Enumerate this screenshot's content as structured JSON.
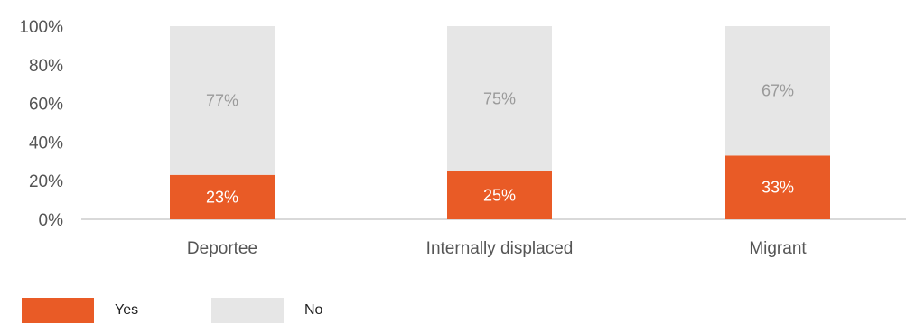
{
  "chart_data": {
    "type": "bar",
    "stacked": true,
    "categories": [
      "Deportee",
      "Internally displaced",
      "Migrant"
    ],
    "series": [
      {
        "name": "Yes",
        "values": [
          23,
          25,
          33
        ],
        "labels": [
          "23%",
          "25%",
          "33%"
        ],
        "color": "#E95B26"
      },
      {
        "name": "No",
        "values": [
          77,
          75,
          67
        ],
        "labels": [
          "77%",
          "75%",
          "67%"
        ],
        "color": "#E6E6E6"
      }
    ],
    "yticks": [
      "0%",
      "20%",
      "40%",
      "60%",
      "80%",
      "100%"
    ],
    "ylim": [
      0,
      100
    ],
    "grid": false,
    "legend_position": "bottom-left"
  }
}
